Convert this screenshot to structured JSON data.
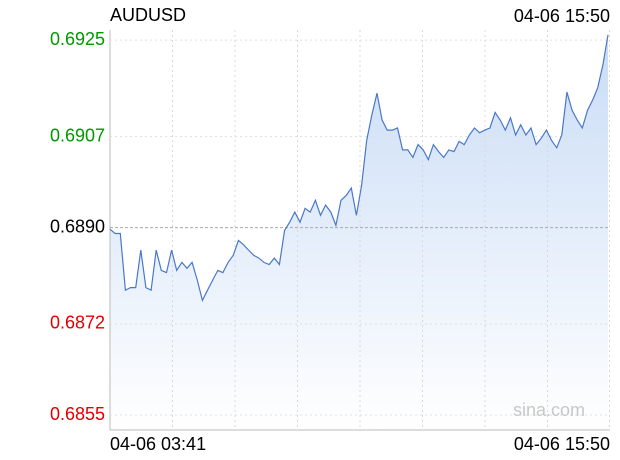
{
  "chart_data": {
    "type": "line",
    "title": "AUDUSD",
    "timestamp": "04-06 15:50",
    "watermark": "sina.com",
    "categories": [
      "04-06 03:41",
      null,
      null,
      null,
      null,
      null,
      null,
      null,
      null,
      null,
      null,
      null,
      null,
      null,
      null,
      null,
      null,
      null,
      null,
      null,
      null,
      null,
      null,
      null,
      null,
      null,
      null,
      null,
      null,
      null,
      null,
      null,
      null,
      null,
      null,
      null,
      null,
      null,
      null,
      null,
      null,
      null,
      null,
      null,
      null,
      null,
      null,
      null,
      null,
      null,
      null,
      null,
      null,
      null,
      null,
      null,
      null,
      null,
      null,
      null,
      null,
      null,
      null,
      null,
      null,
      null,
      null,
      null,
      null,
      null,
      null,
      null,
      null,
      null,
      null,
      null,
      null,
      null,
      null,
      null,
      null,
      null,
      null,
      null,
      null,
      null,
      null,
      null,
      null,
      null,
      null,
      null,
      null,
      null,
      null,
      null,
      null,
      "04-06 15:50"
    ],
    "series": [
      {
        "name": "AUDUSD",
        "color": "#4a78c8",
        "values": [
          0.68897,
          0.68889,
          0.68889,
          0.68783,
          0.68788,
          0.68788,
          0.68858,
          0.68788,
          0.68783,
          0.68858,
          0.6882,
          0.68816,
          0.68858,
          0.6882,
          0.68835,
          0.68824,
          0.68835,
          0.68802,
          0.68764,
          0.68783,
          0.68802,
          0.6882,
          0.68816,
          0.68835,
          0.68848,
          0.68876,
          0.68868,
          0.68858,
          0.68848,
          0.68843,
          0.68835,
          0.68831,
          0.68843,
          0.68831,
          0.68895,
          0.6891,
          0.68929,
          0.6891,
          0.68936,
          0.68929,
          0.68951,
          0.68923,
          0.68942,
          0.68929,
          0.68904,
          0.68951,
          0.6896,
          0.68974,
          0.68923,
          0.68979,
          0.69063,
          0.6911,
          0.69151,
          0.69101,
          0.69082,
          0.69082,
          0.69086,
          0.69045,
          0.69045,
          0.69031,
          0.69055,
          0.69045,
          0.69027,
          0.69055,
          0.69042,
          0.69031,
          0.69045,
          0.69042,
          0.69061,
          0.69055,
          0.69073,
          0.69086,
          0.69077,
          0.69082,
          0.69086,
          0.69115,
          0.69101,
          0.69082,
          0.69105,
          0.69073,
          0.69092,
          0.69073,
          0.69086,
          0.69055,
          0.69067,
          0.69082,
          0.69063,
          0.69049,
          0.69073,
          0.69153,
          0.69119,
          0.69101,
          0.69086,
          0.69119,
          0.69138,
          0.69161,
          0.69204,
          0.6926
        ]
      }
    ],
    "ylim": [
      0.68522,
      0.69269
    ],
    "yticks": [
      0.6855,
      0.6872,
      {
        "value": 0.689,
        "label": "0.6890"
      },
      0.6907,
      0.6925
    ],
    "reference": 0.689,
    "up_color": "#009900",
    "down_color": "#e00000",
    "area": true,
    "grid": true
  }
}
